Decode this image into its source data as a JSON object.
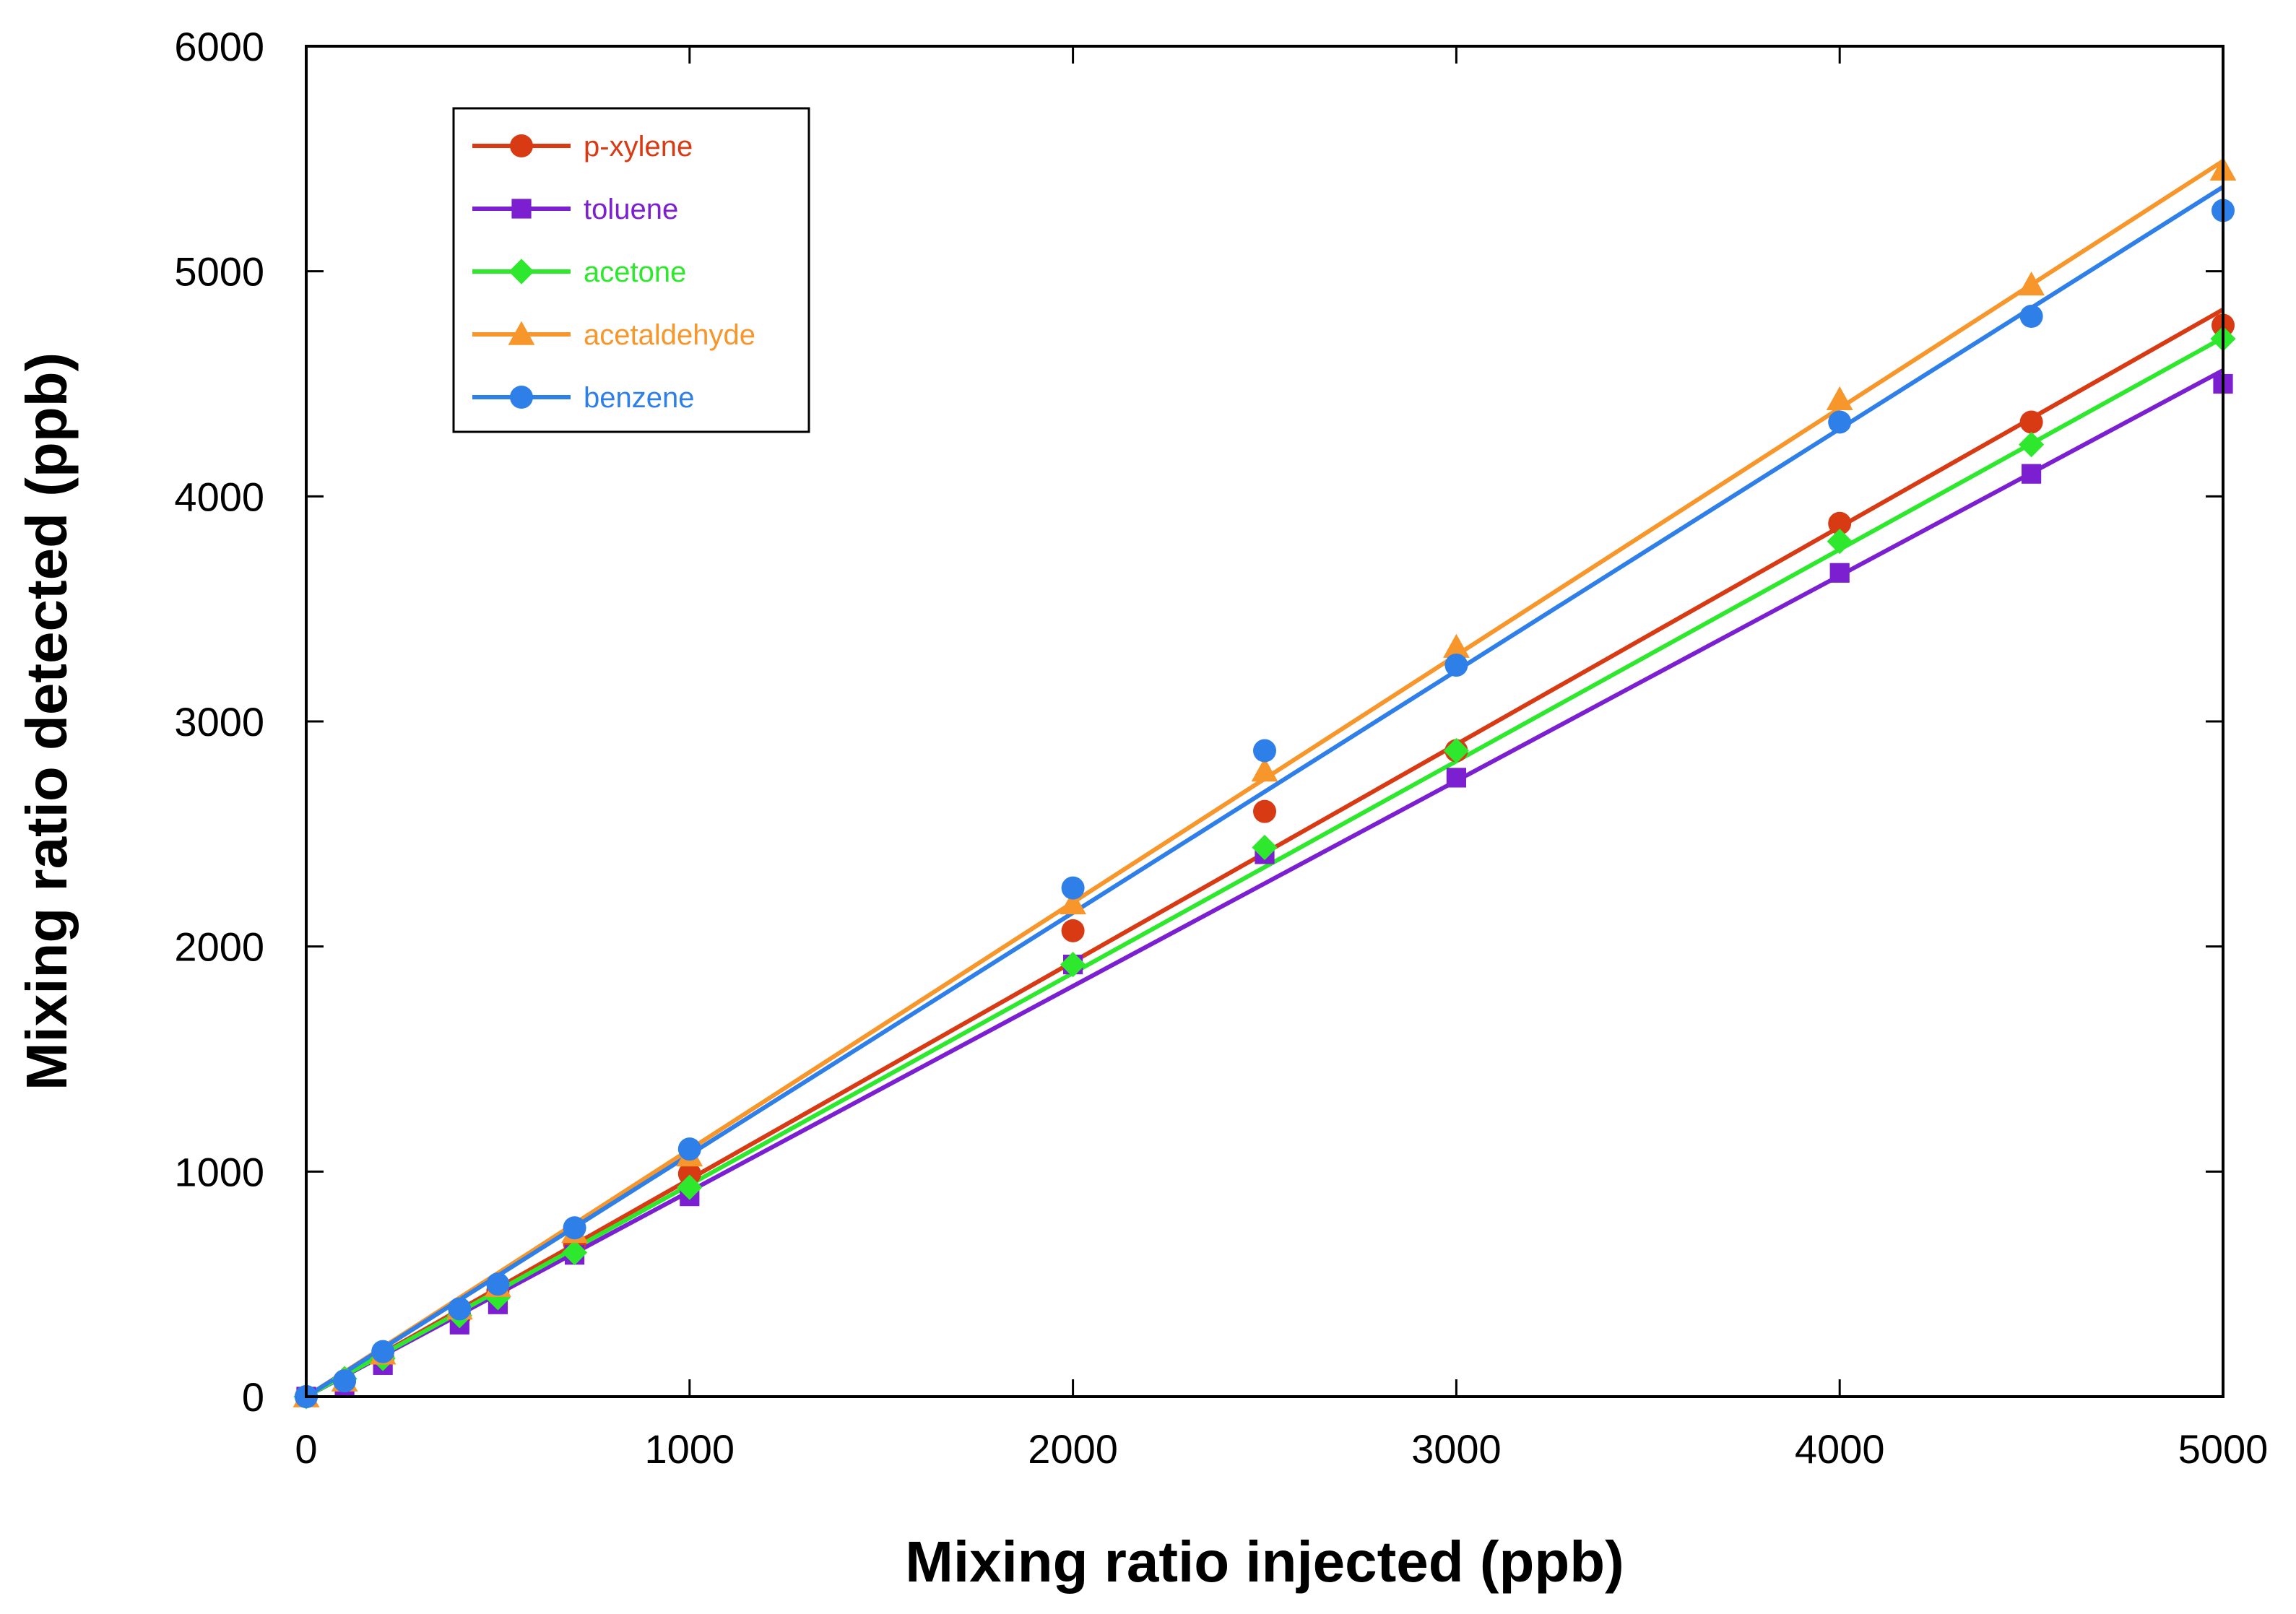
{
  "chart_data": {
    "type": "scatter",
    "title": "",
    "xlabel": "Mixing ratio injected (ppb)",
    "ylabel": "Mixing ratio detected (ppb)",
    "xlim": [
      0,
      5000
    ],
    "ylim": [
      0,
      6000
    ],
    "xticks": [
      0,
      1000,
      2000,
      3000,
      4000,
      5000
    ],
    "yticks": [
      0,
      1000,
      2000,
      3000,
      4000,
      5000,
      6000
    ],
    "x_tick_labels": [
      "0",
      "1000",
      "2000",
      "3000",
      "4000",
      "5000"
    ],
    "y_tick_labels": [
      "0",
      "1000",
      "2000",
      "3000",
      "4000",
      "5000",
      "6000"
    ],
    "grid": false,
    "legend_position": "top-left",
    "x": [
      0,
      100,
      200,
      400,
      500,
      700,
      1000,
      2000,
      2500,
      3000,
      4000,
      4500,
      5000
    ],
    "series": [
      {
        "name": "p-xylene",
        "color": "#d83a14",
        "marker": "circle",
        "values": [
          0,
          70,
          170,
          360,
          470,
          680,
          990,
          2070,
          2600,
          2870,
          3880,
          4330,
          4760
        ],
        "fit": {
          "slope": 0.966,
          "intercept": 0
        }
      },
      {
        "name": "toluene",
        "color": "#7b1fd1",
        "marker": "square",
        "values": [
          0,
          40,
          140,
          320,
          410,
          630,
          890,
          1920,
          2410,
          2750,
          3660,
          4100,
          4500
        ],
        "fit": {
          "slope": 0.912,
          "intercept": 0
        }
      },
      {
        "name": "acetone",
        "color": "#2ee82e",
        "marker": "diamond",
        "values": [
          0,
          80,
          170,
          360,
          440,
          640,
          930,
          1920,
          2440,
          2870,
          3800,
          4230,
          4700
        ],
        "fit": {
          "slope": 0.941,
          "intercept": 0
        }
      },
      {
        "name": "acetaldehyde",
        "color": "#f7962b",
        "marker": "triangle",
        "values": [
          0,
          70,
          190,
          390,
          490,
          730,
          1070,
          2190,
          2780,
          3330,
          4430,
          4940,
          5450
        ],
        "fit": {
          "slope": 1.098,
          "intercept": 0
        }
      },
      {
        "name": "benzene",
        "color": "#2f7fe8",
        "marker": "circle",
        "values": [
          0,
          70,
          200,
          390,
          500,
          750,
          1100,
          2260,
          2870,
          3250,
          4330,
          4800,
          5270
        ],
        "fit": {
          "slope": 1.075,
          "intercept": 0
        }
      }
    ]
  }
}
